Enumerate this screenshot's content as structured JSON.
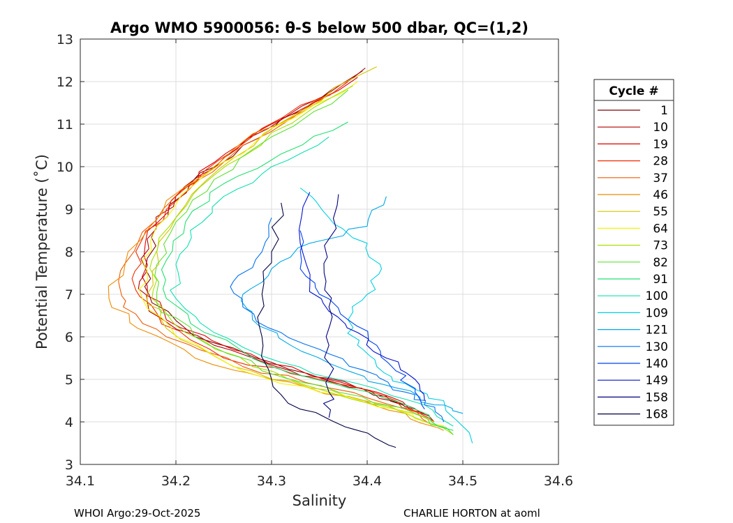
{
  "chart_data": {
    "type": "line",
    "title": "Argo WMO 5900056: θ-S below 500 dbar,  QC=(1,2)",
    "xlabel": "Salinity",
    "ylabel": "Potential Temperature (˚C)",
    "xlim": [
      34.1,
      34.6
    ],
    "ylim": [
      3,
      13
    ],
    "xticks": [
      34.1,
      34.2,
      34.3,
      34.4,
      34.5,
      34.6
    ],
    "xtick_labels": [
      "34.1",
      "34.2",
      "34.3",
      "34.4",
      "34.5",
      "34.6"
    ],
    "yticks": [
      3,
      4,
      5,
      6,
      7,
      8,
      9,
      10,
      11,
      12,
      13
    ],
    "ytick_labels": [
      "3",
      "4",
      "5",
      "6",
      "7",
      "8",
      "9",
      "10",
      "11",
      "12",
      "13"
    ],
    "grid": true,
    "legend_title": "Cycle #",
    "legend_position": "right",
    "series": [
      {
        "name": "1",
        "color": "#800000",
        "points": [
          [
            34.398,
            12.32
          ],
          [
            34.33,
            11.3
          ],
          [
            34.27,
            10.5
          ],
          [
            34.215,
            9.6
          ],
          [
            34.18,
            8.6
          ],
          [
            34.168,
            7.6
          ],
          [
            34.175,
            6.8
          ],
          [
            34.22,
            6.0
          ],
          [
            34.3,
            5.4
          ],
          [
            34.37,
            4.9
          ],
          [
            34.42,
            4.6
          ],
          [
            34.45,
            4.3
          ]
        ]
      },
      {
        "name": "10",
        "color": "#b00000",
        "points": [
          [
            34.395,
            12.25
          ],
          [
            34.31,
            11.1
          ],
          [
            34.25,
            10.2
          ],
          [
            34.2,
            9.3
          ],
          [
            34.17,
            8.3
          ],
          [
            34.162,
            7.3
          ],
          [
            34.172,
            6.6
          ],
          [
            34.24,
            5.8
          ],
          [
            34.32,
            5.2
          ],
          [
            34.39,
            4.8
          ],
          [
            34.44,
            4.4
          ],
          [
            34.47,
            4.0
          ]
        ]
      },
      {
        "name": "19",
        "color": "#dd0000",
        "points": [
          [
            34.39,
            12.1
          ],
          [
            34.3,
            11.0
          ],
          [
            34.24,
            10.1
          ],
          [
            34.195,
            9.2
          ],
          [
            34.168,
            8.2
          ],
          [
            34.17,
            7.2
          ],
          [
            34.19,
            6.4
          ],
          [
            34.26,
            5.7
          ],
          [
            34.34,
            5.1
          ],
          [
            34.41,
            4.7
          ],
          [
            34.46,
            4.2
          ]
        ]
      },
      {
        "name": "28",
        "color": "#f02a00",
        "points": [
          [
            34.38,
            12.0
          ],
          [
            34.29,
            10.9
          ],
          [
            34.23,
            9.9
          ],
          [
            34.19,
            9.0
          ],
          [
            34.158,
            8.0
          ],
          [
            34.158,
            7.1
          ],
          [
            34.185,
            6.3
          ],
          [
            34.25,
            5.5
          ],
          [
            34.35,
            5.0
          ],
          [
            34.43,
            4.5
          ],
          [
            34.47,
            4.0
          ]
        ]
      },
      {
        "name": "37",
        "color": "#f05a00",
        "points": [
          [
            34.37,
            11.8
          ],
          [
            34.27,
            10.5
          ],
          [
            34.2,
            9.3
          ],
          [
            34.16,
            8.2
          ],
          [
            34.14,
            7.3
          ],
          [
            34.145,
            6.7
          ],
          [
            34.19,
            6.0
          ],
          [
            34.27,
            5.3
          ],
          [
            34.36,
            4.8
          ],
          [
            34.44,
            4.3
          ],
          [
            34.48,
            3.9
          ]
        ]
      },
      {
        "name": "46",
        "color": "#ee8a00",
        "points": [
          [
            34.36,
            11.7
          ],
          [
            34.26,
            10.4
          ],
          [
            34.19,
            9.2
          ],
          [
            34.15,
            8.0
          ],
          [
            34.13,
            6.9
          ],
          [
            34.16,
            6.2
          ],
          [
            34.22,
            5.5
          ],
          [
            34.3,
            5.0
          ],
          [
            34.38,
            4.6
          ],
          [
            34.44,
            4.2
          ],
          [
            34.48,
            3.8
          ]
        ]
      },
      {
        "name": "55",
        "color": "#d4c400",
        "points": [
          [
            34.41,
            12.35
          ],
          [
            34.33,
            11.3
          ],
          [
            34.26,
            10.2
          ],
          [
            34.21,
            9.1
          ],
          [
            34.18,
            8.0
          ],
          [
            34.17,
            7.0
          ],
          [
            34.19,
            6.2
          ],
          [
            34.26,
            5.3
          ],
          [
            34.34,
            4.8
          ],
          [
            34.42,
            4.4
          ],
          [
            34.47,
            4.0
          ]
        ]
      },
      {
        "name": "64",
        "color": "#f4f400",
        "points": [
          [
            34.39,
            12.0
          ],
          [
            34.3,
            10.9
          ],
          [
            34.23,
            9.8
          ],
          [
            34.19,
            8.8
          ],
          [
            34.165,
            7.8
          ],
          [
            34.165,
            6.9
          ],
          [
            34.2,
            6.0
          ],
          [
            34.27,
            5.2
          ],
          [
            34.35,
            4.7
          ],
          [
            34.43,
            4.3
          ],
          [
            34.48,
            3.9
          ]
        ]
      },
      {
        "name": "73",
        "color": "#a6e000",
        "points": [
          [
            34.385,
            11.9
          ],
          [
            34.3,
            10.8
          ],
          [
            34.24,
            9.8
          ],
          [
            34.2,
            8.8
          ],
          [
            34.175,
            7.8
          ],
          [
            34.175,
            6.9
          ],
          [
            34.21,
            6.1
          ],
          [
            34.28,
            5.3
          ],
          [
            34.36,
            4.7
          ],
          [
            34.44,
            4.2
          ],
          [
            34.49,
            3.7
          ]
        ]
      },
      {
        "name": "82",
        "color": "#60e030",
        "points": [
          [
            34.38,
            11.8
          ],
          [
            34.3,
            10.7
          ],
          [
            34.24,
            9.7
          ],
          [
            34.2,
            8.7
          ],
          [
            34.18,
            7.7
          ],
          [
            34.18,
            6.8
          ],
          [
            34.22,
            6.0
          ],
          [
            34.29,
            5.2
          ],
          [
            34.37,
            4.7
          ],
          [
            34.45,
            4.2
          ],
          [
            34.49,
            3.7
          ]
        ]
      },
      {
        "name": "91",
        "color": "#20e070",
        "points": [
          [
            34.38,
            11.05
          ],
          [
            34.31,
            10.3
          ],
          [
            34.25,
            9.6
          ],
          [
            34.21,
            8.7
          ],
          [
            34.19,
            7.8
          ],
          [
            34.19,
            6.9
          ],
          [
            34.23,
            6.1
          ],
          [
            34.3,
            5.3
          ],
          [
            34.38,
            4.8
          ],
          [
            34.45,
            4.3
          ],
          [
            34.49,
            3.8
          ]
        ]
      },
      {
        "name": "100",
        "color": "#10e0b0",
        "points": [
          [
            34.36,
            10.7
          ],
          [
            34.3,
            10.0
          ],
          [
            34.25,
            9.3
          ],
          [
            34.215,
            8.5
          ],
          [
            34.2,
            7.7
          ],
          [
            34.2,
            6.9
          ],
          [
            34.24,
            6.1
          ],
          [
            34.31,
            5.4
          ],
          [
            34.39,
            4.9
          ],
          [
            34.46,
            4.4
          ],
          [
            34.49,
            3.9
          ]
        ]
      },
      {
        "name": "109",
        "color": "#00d0e0",
        "points": [
          [
            34.33,
            9.5
          ],
          [
            34.36,
            8.8
          ],
          [
            34.4,
            8.2
          ],
          [
            34.415,
            7.6
          ],
          [
            34.4,
            7.0
          ],
          [
            34.38,
            6.4
          ],
          [
            34.39,
            5.8
          ],
          [
            34.41,
            5.3
          ],
          [
            34.44,
            4.9
          ],
          [
            34.48,
            4.5
          ],
          [
            34.51,
            3.5
          ]
        ]
      },
      {
        "name": "121",
        "color": "#00a8e8",
        "points": [
          [
            34.42,
            9.3
          ],
          [
            34.4,
            8.6
          ],
          [
            34.34,
            8.2
          ],
          [
            34.3,
            7.6
          ],
          [
            34.27,
            7.0
          ],
          [
            34.28,
            6.4
          ],
          [
            34.32,
            5.8
          ],
          [
            34.38,
            5.2
          ],
          [
            34.43,
            4.8
          ],
          [
            34.47,
            4.4
          ],
          [
            34.5,
            4.2
          ]
        ]
      },
      {
        "name": "130",
        "color": "#0070f0",
        "points": [
          [
            34.3,
            8.8
          ],
          [
            34.29,
            8.0
          ],
          [
            34.26,
            7.3
          ],
          [
            34.27,
            6.7
          ],
          [
            34.31,
            6.1
          ],
          [
            34.36,
            5.6
          ],
          [
            34.41,
            5.1
          ],
          [
            34.44,
            4.7
          ],
          [
            34.46,
            4.4
          ],
          [
            34.48,
            4.0
          ]
        ]
      },
      {
        "name": "140",
        "color": "#0040f0",
        "points": [
          [
            34.33,
            8.5
          ],
          [
            34.33,
            7.6
          ],
          [
            34.35,
            7.0
          ],
          [
            34.38,
            6.4
          ],
          [
            34.41,
            5.8
          ],
          [
            34.43,
            5.2
          ],
          [
            34.45,
            4.7
          ],
          [
            34.46,
            4.3
          ]
        ]
      },
      {
        "name": "149",
        "color": "#0010d0",
        "points": [
          [
            34.34,
            9.4
          ],
          [
            34.33,
            8.2
          ],
          [
            34.34,
            7.2
          ],
          [
            34.36,
            6.6
          ],
          [
            34.39,
            6.1
          ],
          [
            34.42,
            5.5
          ],
          [
            34.45,
            5.0
          ],
          [
            34.46,
            4.5
          ]
        ]
      },
      {
        "name": "158",
        "color": "#000080",
        "points": [
          [
            34.37,
            9.35
          ],
          [
            34.36,
            8.3
          ],
          [
            34.355,
            7.5
          ],
          [
            34.36,
            6.7
          ],
          [
            34.36,
            5.8
          ],
          [
            34.36,
            4.7
          ],
          [
            34.36,
            4.1
          ]
        ]
      },
      {
        "name": "168",
        "color": "#000040",
        "points": [
          [
            34.31,
            9.15
          ],
          [
            34.3,
            8.0
          ],
          [
            34.29,
            7.0
          ],
          [
            34.29,
            6.0
          ],
          [
            34.3,
            5.0
          ],
          [
            34.33,
            4.3
          ],
          [
            34.39,
            3.8
          ],
          [
            34.43,
            3.4
          ]
        ]
      }
    ]
  },
  "footer": {
    "left": "WHOI Argo:29-Oct-2025",
    "right": "CHARLIE HORTON at aoml"
  }
}
